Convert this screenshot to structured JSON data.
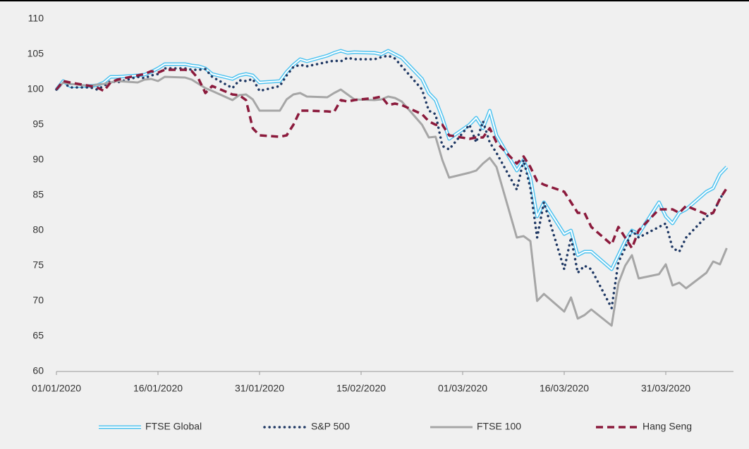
{
  "chart_data": {
    "type": "line",
    "x": [
      "01/01/2020",
      "02/01/2020",
      "03/01/2020",
      "06/01/2020",
      "07/01/2020",
      "08/01/2020",
      "09/01/2020",
      "10/01/2020",
      "13/01/2020",
      "14/01/2020",
      "15/01/2020",
      "16/01/2020",
      "17/01/2020",
      "20/01/2020",
      "21/01/2020",
      "22/01/2020",
      "23/01/2020",
      "24/01/2020",
      "27/01/2020",
      "28/01/2020",
      "29/01/2020",
      "30/01/2020",
      "31/01/2020",
      "03/02/2020",
      "04/02/2020",
      "05/02/2020",
      "06/02/2020",
      "07/02/2020",
      "10/02/2020",
      "11/02/2020",
      "12/02/2020",
      "13/02/2020",
      "14/02/2020",
      "17/02/2020",
      "18/02/2020",
      "19/02/2020",
      "20/02/2020",
      "21/02/2020",
      "24/02/2020",
      "25/02/2020",
      "26/02/2020",
      "27/02/2020",
      "28/02/2020",
      "02/03/2020",
      "03/03/2020",
      "04/03/2020",
      "05/03/2020",
      "06/03/2020",
      "09/03/2020",
      "10/03/2020",
      "11/03/2020",
      "12/03/2020",
      "13/03/2020",
      "16/03/2020",
      "17/03/2020",
      "18/03/2020",
      "19/03/2020",
      "20/03/2020",
      "23/03/2020",
      "24/03/2020",
      "25/03/2020",
      "26/03/2020",
      "27/03/2020",
      "30/03/2020",
      "31/03/2020",
      "01/04/2020",
      "02/04/2020",
      "03/04/2020",
      "06/04/2020",
      "07/04/2020",
      "08/04/2020",
      "09/04/2020"
    ],
    "series": [
      {
        "name": "FTSE Global",
        "color": "#4fc3f0",
        "style": "outline",
        "values": [
          100,
          101.2,
          100.5,
          100.5,
          100.6,
          101,
          101.8,
          101.8,
          102,
          102.1,
          102.5,
          103,
          103.6,
          103.6,
          103.4,
          103.3,
          103,
          102.2,
          101.5,
          102,
          102.2,
          102,
          101,
          101.2,
          102.5,
          103.5,
          104.3,
          104,
          104.8,
          105.2,
          105.5,
          105.2,
          105.3,
          105.2,
          105,
          105.5,
          105,
          104.5,
          101.5,
          99.5,
          98.5,
          96,
          93,
          95,
          96,
          94.5,
          97,
          93.5,
          88.5,
          90,
          87.5,
          82,
          84,
          79.5,
          80,
          76.5,
          77,
          77,
          74.5,
          76.5,
          78.5,
          80,
          79.5,
          84,
          82,
          81,
          82.5,
          83,
          85.5,
          86,
          88,
          89
        ]
      },
      {
        "name": "S&P 500",
        "color": "#1f3864",
        "style": "dotted",
        "values": [
          100,
          101,
          100.3,
          100.3,
          100,
          100.5,
          101.2,
          101,
          101.8,
          101.6,
          102,
          102.2,
          103,
          103,
          102.8,
          102.8,
          102.9,
          101.8,
          100.2,
          101.3,
          101.2,
          101.5,
          99.8,
          100.5,
          102,
          103.2,
          103.5,
          103.3,
          103.9,
          104.1,
          104,
          104.5,
          104.3,
          104.3,
          104.6,
          104.8,
          104.4,
          103.3,
          100,
          97,
          96.5,
          92,
          91.5,
          95,
          92.5,
          95.5,
          92.5,
          91,
          85.8,
          90,
          86,
          79,
          84,
          74.5,
          79,
          74,
          75,
          74.5,
          69,
          75.5,
          77.5,
          80,
          79,
          80.5,
          81,
          77.5,
          77,
          79,
          82,
          82.5,
          84.5,
          86
        ]
      },
      {
        "name": "FTSE 100",
        "color": "#a6a6a6",
        "style": "solid",
        "values": [
          100,
          101,
          100.8,
          100.5,
          100.7,
          100.8,
          101,
          101.2,
          101,
          101.4,
          101.5,
          101.2,
          101.8,
          101.7,
          101.4,
          100.8,
          100.2,
          99.8,
          98.5,
          99.2,
          99.3,
          98.6,
          97,
          97,
          98.6,
          99.3,
          99.5,
          99,
          98.9,
          99.5,
          100,
          99.3,
          98.6,
          98.5,
          98.6,
          99,
          98.8,
          98.3,
          95,
          93.2,
          93.3,
          90,
          87.5,
          88.2,
          88.5,
          89.5,
          90.3,
          89,
          79,
          79.2,
          78.5,
          70,
          71,
          68.5,
          70.5,
          67.5,
          68,
          68.8,
          66.5,
          72.5,
          75,
          76.5,
          73.2,
          73.8,
          75.2,
          72.2,
          72.6,
          71.8,
          74,
          75.6,
          75.2,
          77.5
        ]
      },
      {
        "name": "Hang Seng",
        "color": "#8b1a3c",
        "style": "dashed",
        "values": [
          100,
          101.2,
          101,
          100.5,
          100.3,
          99.8,
          101,
          101.4,
          102,
          102.2,
          102.6,
          102.4,
          102.8,
          102.8,
          102.6,
          101.5,
          99.5,
          100.5,
          99.3,
          99.2,
          98.5,
          94.5,
          93.5,
          93.3,
          93.5,
          95,
          97,
          97,
          96.9,
          96.8,
          98.5,
          98.3,
          98.5,
          98.8,
          99,
          97.8,
          98,
          97.8,
          96.5,
          95.5,
          95,
          95,
          93.5,
          93,
          93.2,
          93.2,
          94.5,
          92.5,
          89.5,
          90.5,
          89,
          87,
          86.5,
          85.5,
          84,
          82.5,
          82.5,
          80.5,
          78,
          80.5,
          79,
          77.5,
          80,
          83,
          83,
          83,
          82.5,
          83.5,
          82.3,
          82.5,
          84.5,
          86
        ]
      }
    ],
    "xlim": [
      "01/01/2020",
      "10/04/2020"
    ],
    "xticks": [
      "01/01/2020",
      "16/01/2020",
      "31/01/2020",
      "15/02/2020",
      "01/03/2020",
      "16/03/2020",
      "31/03/2020"
    ],
    "ylim": [
      60,
      110
    ],
    "yticks": [
      60,
      65,
      70,
      75,
      80,
      85,
      90,
      95,
      100,
      105,
      110
    ],
    "grid": false,
    "legend": "bottom"
  }
}
